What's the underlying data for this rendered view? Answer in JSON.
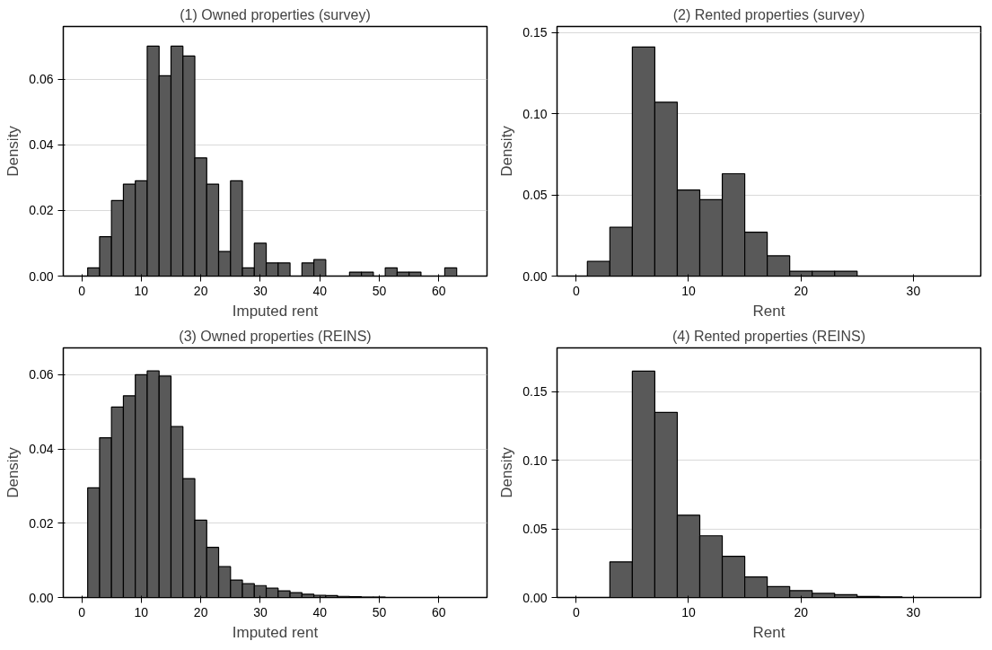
{
  "chart_data": [
    {
      "type": "histogram",
      "title": "(1) Owned properties (survey)",
      "xlabel": "Imputed rent",
      "ylabel": "Density",
      "color": "#595959",
      "grid": "y",
      "bins": [
        1,
        3,
        5,
        7,
        9,
        11,
        13,
        15,
        17,
        19,
        21,
        23,
        25,
        27,
        29,
        31,
        33,
        35,
        37,
        39,
        41,
        43,
        45,
        47,
        49,
        51,
        53,
        55,
        57,
        59,
        61,
        63
      ],
      "values": [
        0.0025,
        0.012,
        0.023,
        0.028,
        0.029,
        0.07,
        0.061,
        0.07,
        0.067,
        0.036,
        0.028,
        0.0075,
        0.029,
        0.0025,
        0.01,
        0.004,
        0.004,
        0,
        0.004,
        0.005,
        0,
        0,
        0.0012,
        0.0012,
        0,
        0.0025,
        0.0012,
        0.0012,
        0,
        0,
        0.0025
      ],
      "xlim": [
        -3.1,
        68.1
      ],
      "ylim": [
        0,
        0.076
      ],
      "xticks": [
        0,
        10,
        20,
        30,
        40,
        50,
        60
      ],
      "yticks": [
        {
          "value": 0,
          "label": "0.00"
        },
        {
          "value": 0.02,
          "label": "0.02"
        },
        {
          "value": 0.04,
          "label": "0.04"
        },
        {
          "value": 0.06,
          "label": "0.06"
        }
      ]
    },
    {
      "type": "histogram",
      "title": "(2) Rented properties (survey)",
      "xlabel": "Rent",
      "ylabel": "Density",
      "color": "#595959",
      "grid": "y",
      "bins": [
        1,
        3,
        5,
        7,
        9,
        11,
        13,
        15,
        17,
        19,
        21,
        23,
        25
      ],
      "values": [
        0.009,
        0.03,
        0.141,
        0.107,
        0.053,
        0.047,
        0.063,
        0.027,
        0.0125,
        0.003,
        0.003,
        0.003
      ],
      "xlim": [
        -1.7,
        36
      ],
      "ylim": [
        0,
        0.1536
      ],
      "xticks": [
        0,
        10,
        20,
        30
      ],
      "yticks": [
        {
          "value": 0,
          "label": "0.00"
        },
        {
          "value": 0.05,
          "label": "0.05"
        },
        {
          "value": 0.1,
          "label": "0.10"
        },
        {
          "value": 0.15,
          "label": "0.15"
        }
      ]
    },
    {
      "type": "histogram",
      "title": "(3) Owned properties (REINS)",
      "xlabel": "Imputed rent",
      "ylabel": "Density",
      "color": "#595959",
      "grid": "y",
      "bins": [
        1,
        3,
        5,
        7,
        9,
        11,
        13,
        15,
        17,
        19,
        21,
        23,
        25,
        27,
        29,
        31,
        33,
        35,
        37,
        39,
        41,
        43,
        45,
        47,
        49,
        51
      ],
      "values": [
        0.0295,
        0.043,
        0.0513,
        0.0543,
        0.06,
        0.061,
        0.0596,
        0.046,
        0.032,
        0.0208,
        0.0135,
        0.0083,
        0.0047,
        0.0037,
        0.0032,
        0.0025,
        0.0018,
        0.0013,
        0.0009,
        0.0006,
        0.0005,
        0.0003,
        0.0002,
        0.0001,
        0.0001
      ],
      "xlim": [
        -3.1,
        68.1
      ],
      "ylim": [
        0,
        0.0672
      ],
      "xticks": [
        0,
        10,
        20,
        30,
        40,
        50,
        60
      ],
      "yticks": [
        {
          "value": 0,
          "label": "0.00"
        },
        {
          "value": 0.02,
          "label": "0.02"
        },
        {
          "value": 0.04,
          "label": "0.04"
        },
        {
          "value": 0.06,
          "label": "0.06"
        }
      ]
    },
    {
      "type": "histogram",
      "title": "(4) Rented properties (REINS)",
      "xlabel": "Rent",
      "ylabel": "Density",
      "color": "#595959",
      "grid": "y",
      "bins": [
        3,
        5,
        7,
        9,
        11,
        13,
        15,
        17,
        19,
        21,
        23,
        25,
        27,
        29
      ],
      "values": [
        0.026,
        0.165,
        0.135,
        0.06,
        0.045,
        0.03,
        0.015,
        0.008,
        0.005,
        0.003,
        0.002,
        0.0007,
        0.0005
      ],
      "xlim": [
        -1.7,
        36
      ],
      "ylim": [
        0,
        0.182
      ],
      "xticks": [
        0,
        10,
        20,
        30
      ],
      "yticks": [
        {
          "value": 0,
          "label": "0.00"
        },
        {
          "value": 0.05,
          "label": "0.05"
        },
        {
          "value": 0.1,
          "label": "0.10"
        },
        {
          "value": 0.15,
          "label": "0.15"
        }
      ]
    }
  ]
}
